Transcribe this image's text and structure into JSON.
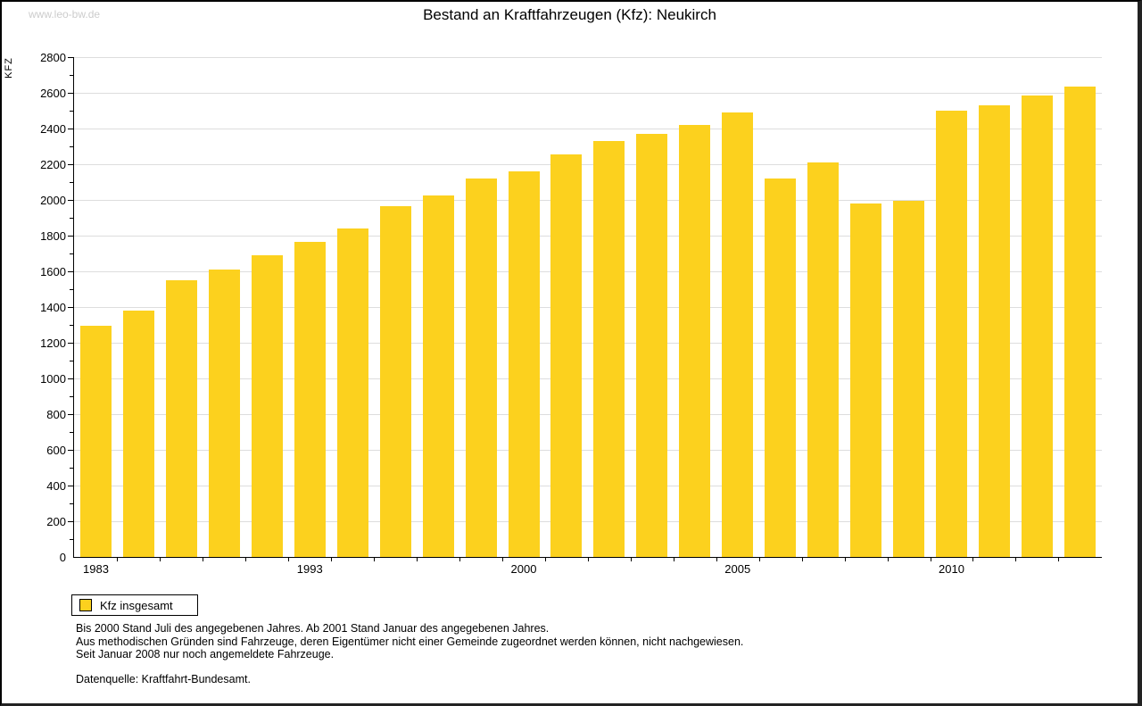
{
  "watermark": "www.leo-bw.de",
  "title": "Bestand an Kraftfahrzeugen (Kfz): Neukirch",
  "colors": {
    "bar": "#FCD11E",
    "grid": "#DDDDDD",
    "axis": "#000000",
    "watermark": "#CCCCCC"
  },
  "legend": {
    "swatch": "yellow-square",
    "label": "Kfz insgesamt"
  },
  "footnotes": {
    "0": "Bis 2000 Stand Juli des angegebenen Jahres. Ab 2001 Stand Januar des angegebenen Jahres.",
    "1": "Aus methodischen Gründen sind Fahrzeuge, deren Eigentümer nicht einer Gemeinde zugeordnet werden können, nicht nachgewiesen.",
    "2": "Seit Januar 2008 nur noch angemeldete Fahrzeuge."
  },
  "source": "Datenquelle: Kraftfahrt-Bundesamt.",
  "chart_data": {
    "type": "bar",
    "title": "Bestand an Kraftfahrzeugen (Kfz): Neukirch",
    "xlabel": "",
    "ylabel": "KFZ",
    "ylim": [
      0,
      2800
    ],
    "ytick_step": 200,
    "ytick_minor_step": 100,
    "grid": "horizontal-major",
    "legend_position": "bottom-left",
    "legend_entries": [
      {
        "label": "Kfz insgesamt",
        "color": "#FCD11E"
      }
    ],
    "visible_xtick_labels": [
      "1983",
      "1993",
      "2000",
      "2005",
      "2010"
    ],
    "bars": [
      {
        "tick": "1983",
        "value": 1295
      },
      {
        "tick": "",
        "value": 1380
      },
      {
        "tick": "",
        "value": 1550
      },
      {
        "tick": "",
        "value": 1610
      },
      {
        "tick": "",
        "value": 1690
      },
      {
        "tick": "1993",
        "value": 1765
      },
      {
        "tick": "",
        "value": 1840
      },
      {
        "tick": "",
        "value": 1965
      },
      {
        "tick": "",
        "value": 2025
      },
      {
        "tick": "",
        "value": 2120
      },
      {
        "tick": "2000",
        "value": 2160
      },
      {
        "tick": "",
        "value": 2255
      },
      {
        "tick": "",
        "value": 2330
      },
      {
        "tick": "",
        "value": 2370
      },
      {
        "tick": "",
        "value": 2420
      },
      {
        "tick": "2005",
        "value": 2490
      },
      {
        "tick": "",
        "value": 2120
      },
      {
        "tick": "",
        "value": 2210
      },
      {
        "tick": "",
        "value": 1980
      },
      {
        "tick": "",
        "value": 1995
      },
      {
        "tick": "2010",
        "value": 2500
      },
      {
        "tick": "",
        "value": 2530
      },
      {
        "tick": "",
        "value": 2585
      },
      {
        "tick": "",
        "value": 2635
      }
    ]
  }
}
